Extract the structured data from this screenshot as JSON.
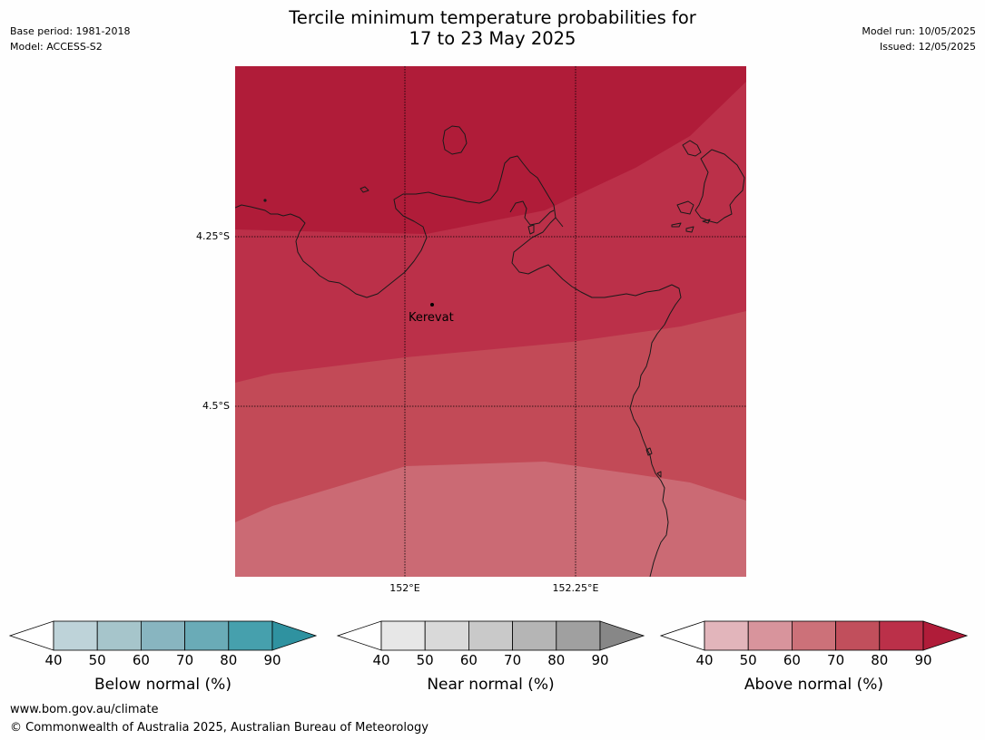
{
  "header": {
    "title_line1": "Tercile minimum temperature probabilities for",
    "title_line2": "17 to 23 May 2025",
    "base_period": "Base period: 1981-2018",
    "model": "Model: ACCESS-S2",
    "model_run": "Model run: 10/05/2025",
    "issued": "Issued: 12/05/2025"
  },
  "map": {
    "lat_labels": [
      "4.25°S",
      "4.5°S"
    ],
    "lon_labels": [
      "152°E",
      "152.25°E"
    ],
    "place": "Kerevat",
    "band_colors": {
      "above_80_90": "#b01c39",
      "above_70_80": "#bb3049",
      "above_60_70": "#c24a57",
      "above_50_60": "#cb6a74"
    }
  },
  "colorbars": [
    {
      "title": "Below normal (%)",
      "ticks": [
        "40",
        "50",
        "60",
        "70",
        "80",
        "90"
      ],
      "colors": [
        "#ffffff",
        "#bed3d9",
        "#a6c5cb",
        "#88b5c0",
        "#6aabb7",
        "#46a0ad",
        "#2f92a0"
      ]
    },
    {
      "title": "Near normal (%)",
      "ticks": [
        "40",
        "50",
        "60",
        "70",
        "80",
        "90"
      ],
      "colors": [
        "#ffffff",
        "#e7e7e7",
        "#d9d9d9",
        "#c9c9c9",
        "#b5b5b5",
        "#a0a0a0",
        "#878787"
      ]
    },
    {
      "title": "Above normal (%)",
      "ticks": [
        "40",
        "50",
        "60",
        "70",
        "80",
        "90"
      ],
      "colors": [
        "#ffffff",
        "#e2b5bb",
        "#d8949c",
        "#cc7179",
        "#c14f5c",
        "#bb3049",
        "#b01c39"
      ]
    }
  ],
  "footer": {
    "url": "www.bom.gov.au/climate",
    "copyright": "© Commonwealth of Australia 2025, Australian Bureau of Meteorology"
  }
}
